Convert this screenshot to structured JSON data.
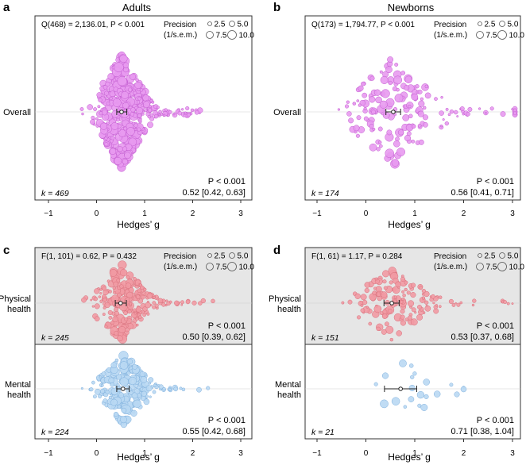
{
  "panels": [
    {
      "letter": "a",
      "title": "Adults",
      "stat": "Q(468) = 2,136.01, P < 0.001",
      "precision_legend": {
        "label1": "Precision",
        "label2": "(1/s.e.m.)",
        "values": [
          "2.5",
          "5.0",
          "7.5",
          "10.0"
        ]
      },
      "xlabel": "Hedges’ g",
      "xticks": [
        "−1",
        "0",
        "1",
        "2",
        "3"
      ],
      "shaded_top": false,
      "rows": [
        {
          "label": "Overall",
          "k": "k = 469",
          "p": "P < 0.001",
          "estimate": "0.52 [0.42, 0.63]"
        }
      ]
    },
    {
      "letter": "b",
      "title": "Newborns",
      "stat": "Q(173) = 1,794.77, P < 0.001",
      "precision_legend": {
        "label1": "Precision",
        "label2": "(1/s.e.m.)",
        "values": [
          "2.5",
          "5.0",
          "7.5",
          "10.0"
        ]
      },
      "xlabel": "Hedges’ g",
      "xticks": [
        "−1",
        "0",
        "1",
        "2",
        "3"
      ],
      "shaded_top": false,
      "rows": [
        {
          "label": "Overall",
          "k": "k = 174",
          "p": "P < 0.001",
          "estimate": "0.56 [0.41, 0.71]"
        }
      ]
    },
    {
      "letter": "c",
      "title": "",
      "stat": "F(1, 101) = 0.62, P = 0.432",
      "precision_legend": {
        "label1": "Precision",
        "label2": "(1/s.e.m.)",
        "values": [
          "2.5",
          "5.0",
          "7.5",
          "10.0"
        ]
      },
      "xlabel": "Hedges’ g",
      "xticks": [
        "−1",
        "0",
        "1",
        "2",
        "3"
      ],
      "shaded_top": true,
      "rows": [
        {
          "label": "Physical health",
          "k": "k = 245",
          "p": "P < 0.001",
          "estimate": "0.50 [0.39, 0.62]"
        },
        {
          "label": "Mental health",
          "k": "k = 224",
          "p": "P < 0.001",
          "estimate": "0.55 [0.42, 0.68]"
        }
      ]
    },
    {
      "letter": "d",
      "title": "",
      "stat": "F(1, 61) = 1.17, P = 0.284",
      "precision_legend": {
        "label1": "Precision",
        "label2": "(1/s.e.m.)",
        "values": [
          "2.5",
          "5.0",
          "7.5",
          "10.0"
        ]
      },
      "xlabel": "Hedges’ g",
      "xticks": [
        "−1",
        "0",
        "1",
        "2",
        "3"
      ],
      "shaded_top": true,
      "rows": [
        {
          "label": "Physical health",
          "k": "k = 151",
          "p": "P < 0.001",
          "estimate": "0.53 [0.37, 0.68]"
        },
        {
          "label": "Mental health",
          "k": "k = 21",
          "p": "P < 0.001",
          "estimate": "0.71 [0.38, 1.04]"
        }
      ]
    }
  ],
  "colors": {
    "pink": "#e89af0",
    "pink_edge": "#c25bd0",
    "red": "#f19aa3",
    "red_edge": "#d9707c",
    "blue": "#b9d8f3",
    "blue_edge": "#7fb0dd",
    "shade": "#e6e6e6"
  },
  "chart_data": [
    {
      "type": "scatter",
      "panel": "a",
      "xlabel": "Hedges’ g",
      "xlim": [
        -1,
        3
      ],
      "series": [
        {
          "category": "Overall",
          "k": 469,
          "estimate": 0.52,
          "ci": [
            0.42,
            0.63
          ],
          "x_range": [
            -0.9,
            2.9
          ]
        }
      ]
    },
    {
      "type": "scatter",
      "panel": "b",
      "xlabel": "Hedges’ g",
      "xlim": [
        -1,
        3
      ],
      "series": [
        {
          "category": "Overall",
          "k": 174,
          "estimate": 0.56,
          "ci": [
            0.41,
            0.71
          ],
          "x_range": [
            -0.8,
            3.05
          ]
        }
      ]
    },
    {
      "type": "scatter",
      "panel": "c",
      "xlabel": "Hedges’ g",
      "xlim": [
        -1,
        3
      ],
      "series": [
        {
          "category": "Physical health",
          "k": 245,
          "estimate": 0.5,
          "ci": [
            0.39,
            0.62
          ],
          "x_range": [
            -0.9,
            2.9
          ]
        },
        {
          "category": "Mental health",
          "k": 224,
          "estimate": 0.55,
          "ci": [
            0.42,
            0.68
          ],
          "x_range": [
            -0.75,
            2.7
          ]
        }
      ]
    },
    {
      "type": "scatter",
      "panel": "d",
      "xlabel": "Hedges’ g",
      "xlim": [
        -1,
        3
      ],
      "series": [
        {
          "category": "Physical health",
          "k": 151,
          "estimate": 0.53,
          "ci": [
            0.37,
            0.68
          ],
          "x_range": [
            -0.85,
            3.0
          ]
        },
        {
          "category": "Mental health",
          "k": 21,
          "estimate": 0.71,
          "ci": [
            0.38,
            1.04
          ],
          "x_range": [
            -0.6,
            2.0
          ]
        }
      ]
    }
  ]
}
